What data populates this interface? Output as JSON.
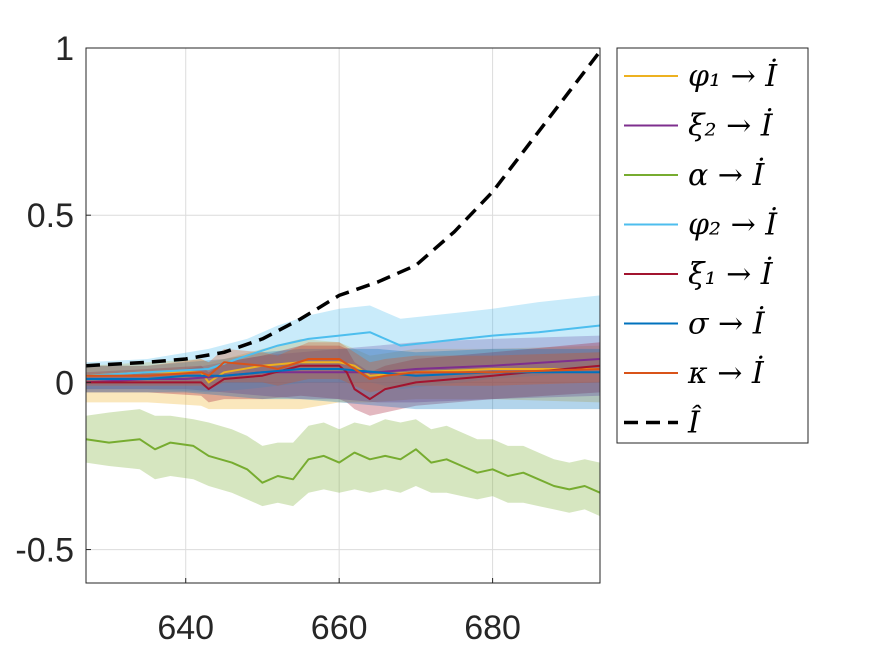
{
  "chart_data": {
    "type": "line",
    "title": "",
    "xlabel": "",
    "ylabel": "",
    "xlim": [
      627,
      694
    ],
    "ylim": [
      -0.6,
      1
    ],
    "xticks": [
      640,
      660,
      680
    ],
    "yticks": [
      -0.5,
      0,
      0.5,
      1
    ],
    "xtick_labels": [
      "640",
      "660",
      "680"
    ],
    "ytick_labels": [
      "-0.5",
      "0",
      "0.5",
      "1"
    ],
    "grid": true,
    "legend_placement": "outside-right-top",
    "series": [
      {
        "name": "φ₁ → İ",
        "color": "#EDB120",
        "style": "solid",
        "x": [
          627,
          635,
          642,
          643,
          645,
          650,
          655,
          660,
          662,
          664,
          670,
          680,
          694
        ],
        "y": [
          0.02,
          0.03,
          0.03,
          0.0,
          0.03,
          0.05,
          0.06,
          0.06,
          0.05,
          0.02,
          0.03,
          0.04,
          0.04
        ],
        "band_lower": [
          -0.06,
          -0.06,
          -0.07,
          -0.08,
          -0.08,
          -0.08,
          -0.08,
          -0.06,
          -0.06,
          -0.06,
          -0.05,
          -0.05,
          -0.06
        ],
        "band_upper": [
          0.05,
          0.06,
          0.07,
          0.06,
          0.07,
          0.1,
          0.13,
          0.12,
          0.1,
          0.08,
          0.1,
          0.1,
          0.11
        ]
      },
      {
        "name": "ξ₂ → İ",
        "color": "#7E2F8E",
        "style": "solid",
        "x": [
          627,
          635,
          640,
          645,
          650,
          655,
          660,
          665,
          670,
          680,
          694
        ],
        "y": [
          0.0,
          0.01,
          0.01,
          0.02,
          0.03,
          0.03,
          0.03,
          0.03,
          0.04,
          0.05,
          0.07
        ],
        "band_lower": [
          -0.02,
          -0.02,
          -0.02,
          -0.03,
          -0.04,
          -0.05,
          -0.05,
          -0.06,
          -0.06,
          -0.05,
          -0.04
        ],
        "band_upper": [
          0.02,
          0.03,
          0.04,
          0.06,
          0.08,
          0.09,
          0.1,
          0.11,
          0.12,
          0.13,
          0.14
        ]
      },
      {
        "name": "α → İ",
        "color": "#77AC30",
        "style": "solid",
        "x": [
          627,
          630,
          634,
          636,
          638,
          641,
          643,
          646,
          648,
          650,
          652,
          654,
          656,
          658,
          660,
          662,
          664,
          666,
          668,
          670,
          672,
          674,
          676,
          678,
          680,
          682,
          684,
          686,
          688,
          690,
          692,
          694
        ],
        "y": [
          -0.17,
          -0.18,
          -0.17,
          -0.2,
          -0.18,
          -0.19,
          -0.22,
          -0.24,
          -0.26,
          -0.3,
          -0.28,
          -0.29,
          -0.23,
          -0.22,
          -0.24,
          -0.21,
          -0.23,
          -0.22,
          -0.23,
          -0.2,
          -0.24,
          -0.23,
          -0.25,
          -0.27,
          -0.26,
          -0.28,
          -0.27,
          -0.29,
          -0.31,
          -0.32,
          -0.31,
          -0.33
        ],
        "band_lower": [
          -0.24,
          -0.25,
          -0.26,
          -0.29,
          -0.28,
          -0.29,
          -0.31,
          -0.33,
          -0.35,
          -0.37,
          -0.36,
          -0.37,
          -0.33,
          -0.32,
          -0.33,
          -0.32,
          -0.33,
          -0.32,
          -0.33,
          -0.31,
          -0.33,
          -0.33,
          -0.34,
          -0.35,
          -0.34,
          -0.36,
          -0.36,
          -0.37,
          -0.38,
          -0.39,
          -0.38,
          -0.4
        ],
        "band_upper": [
          -0.1,
          -0.09,
          -0.08,
          -0.1,
          -0.1,
          -0.11,
          -0.12,
          -0.14,
          -0.16,
          -0.19,
          -0.18,
          -0.18,
          -0.13,
          -0.12,
          -0.14,
          -0.12,
          -0.13,
          -0.11,
          -0.12,
          -0.11,
          -0.14,
          -0.13,
          -0.15,
          -0.17,
          -0.17,
          -0.19,
          -0.19,
          -0.21,
          -0.23,
          -0.24,
          -0.23,
          -0.24
        ]
      },
      {
        "name": "φ₂ → İ",
        "color": "#4DBEEE",
        "style": "solid",
        "x": [
          627,
          635,
          643,
          648,
          652,
          656,
          660,
          664,
          668,
          672,
          676,
          680,
          686,
          690,
          694
        ],
        "y": [
          0.02,
          0.03,
          0.04,
          0.08,
          0.11,
          0.13,
          0.14,
          0.15,
          0.11,
          0.12,
          0.13,
          0.14,
          0.15,
          0.16,
          0.17
        ],
        "band_lower": [
          -0.02,
          -0.02,
          -0.03,
          -0.02,
          -0.01,
          0.0,
          0.0,
          0.0,
          -0.02,
          -0.01,
          0.0,
          0.01,
          0.02,
          0.03,
          0.03
        ],
        "band_upper": [
          0.06,
          0.07,
          0.1,
          0.13,
          0.17,
          0.2,
          0.22,
          0.23,
          0.19,
          0.2,
          0.21,
          0.22,
          0.24,
          0.25,
          0.26
        ]
      },
      {
        "name": "ξ₁ → İ",
        "color": "#A2142F",
        "style": "solid",
        "x": [
          627,
          635,
          642,
          643,
          645,
          650,
          655,
          660,
          661,
          662,
          664,
          666,
          670,
          680,
          694
        ],
        "y": [
          0.0,
          0.0,
          0.0,
          -0.02,
          0.01,
          0.02,
          0.05,
          0.05,
          0.03,
          -0.02,
          -0.05,
          -0.02,
          0.0,
          0.02,
          0.05
        ],
        "band_lower": [
          -0.03,
          -0.03,
          -0.04,
          -0.06,
          -0.05,
          -0.05,
          -0.04,
          -0.05,
          -0.06,
          -0.08,
          -0.1,
          -0.09,
          -0.07,
          -0.05,
          -0.03
        ],
        "band_upper": [
          0.03,
          0.04,
          0.05,
          0.03,
          0.06,
          0.08,
          0.11,
          0.11,
          0.1,
          0.06,
          0.03,
          0.05,
          0.07,
          0.09,
          0.12
        ]
      },
      {
        "name": "σ → İ",
        "color": "#0072BD",
        "style": "solid",
        "x": [
          627,
          635,
          640,
          645,
          650,
          655,
          660,
          665,
          670,
          680,
          694
        ],
        "y": [
          0.01,
          0.01,
          0.02,
          0.02,
          0.03,
          0.04,
          0.04,
          0.03,
          0.02,
          0.03,
          0.03
        ],
        "band_lower": [
          -0.03,
          -0.03,
          -0.03,
          -0.04,
          -0.05,
          -0.05,
          -0.06,
          -0.07,
          -0.08,
          -0.08,
          -0.08
        ],
        "band_upper": [
          0.05,
          0.05,
          0.06,
          0.07,
          0.09,
          0.1,
          0.1,
          0.1,
          0.09,
          0.1,
          0.1
        ]
      },
      {
        "name": "κ → İ",
        "color": "#D95319",
        "style": "solid",
        "x": [
          627,
          635,
          642,
          643,
          645,
          650,
          652,
          656,
          660,
          662,
          664,
          666,
          670,
          675,
          680,
          694
        ],
        "y": [
          0.02,
          0.02,
          0.03,
          0.02,
          0.06,
          0.05,
          0.04,
          0.07,
          0.07,
          0.04,
          0.01,
          0.02,
          0.03,
          0.03,
          0.03,
          0.04
        ],
        "band_lower": [
          -0.01,
          -0.01,
          -0.01,
          -0.02,
          0.0,
          0.0,
          -0.01,
          0.01,
          0.01,
          -0.01,
          -0.03,
          -0.02,
          -0.01,
          -0.01,
          -0.01,
          0.0
        ],
        "band_upper": [
          0.05,
          0.05,
          0.07,
          0.06,
          0.1,
          0.09,
          0.08,
          0.12,
          0.12,
          0.09,
          0.06,
          0.07,
          0.08,
          0.08,
          0.08,
          0.09
        ]
      },
      {
        "name": "Î",
        "color": "#000000",
        "style": "dashed",
        "x": [
          627,
          635,
          640,
          645,
          650,
          655,
          660,
          665,
          670,
          675,
          680,
          685,
          690,
          694
        ],
        "y": [
          0.05,
          0.06,
          0.07,
          0.09,
          0.13,
          0.19,
          0.26,
          0.3,
          0.35,
          0.45,
          0.57,
          0.72,
          0.87,
          0.99
        ]
      }
    ]
  }
}
